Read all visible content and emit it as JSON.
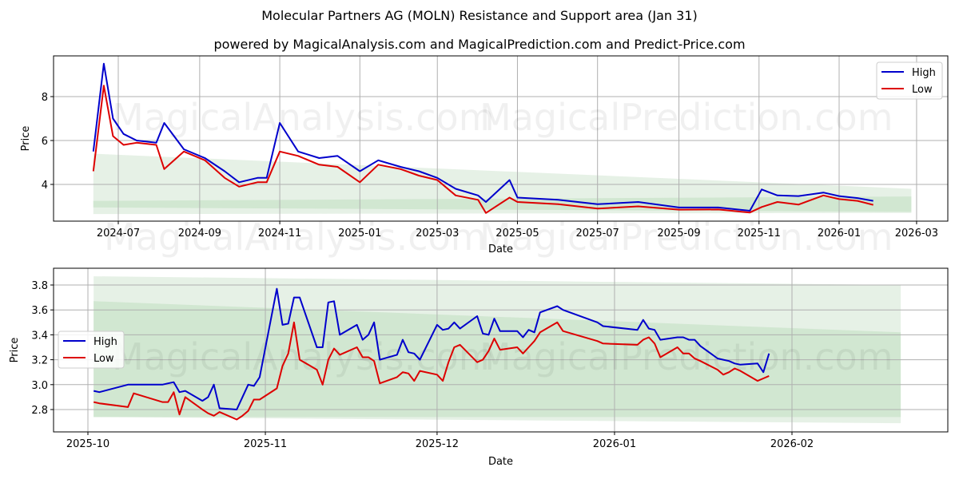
{
  "title": "Molecular Partners AG (MOLN) Resistance and Support area (Jan 31)",
  "subtitle": "powered by MagicalAnalysis.com and MagicalPrediction.com and Predict-Price.com",
  "watermarks": [
    "MagicalAnalysis.com",
    "MagicalPrediction.com"
  ],
  "colors": {
    "high": "#0000cc",
    "low": "#dd0000",
    "band_light": "#e3efe3",
    "band_dark": "#c9e3c9"
  },
  "chart_data": [
    {
      "type": "line",
      "title": "Full history",
      "xlabel": "Date",
      "ylabel": "Price",
      "x_ticks": [
        "2024-07",
        "2024-09",
        "2024-11",
        "2025-01",
        "2025-03",
        "2025-05",
        "2025-07",
        "2025-09",
        "2025-11",
        "2026-01",
        "2026-03"
      ],
      "y_ticks": [
        "4",
        "6",
        "8"
      ],
      "ylim": [
        2.3,
        9.8
      ],
      "grid": true,
      "legend": {
        "position": "upper right",
        "entries": [
          "High",
          "Low"
        ]
      },
      "x": [
        "2024-06-12",
        "2024-06-20",
        "2024-06-27",
        "2024-07-05",
        "2024-07-15",
        "2024-07-30",
        "2024-08-05",
        "2024-08-20",
        "2024-09-05",
        "2024-09-20",
        "2024-10-01",
        "2024-10-15",
        "2024-10-22",
        "2024-11-01",
        "2024-11-15",
        "2024-12-01",
        "2024-12-15",
        "2025-01-01",
        "2025-01-15",
        "2025-02-01",
        "2025-02-15",
        "2025-03-01",
        "2025-03-15",
        "2025-04-01",
        "2025-04-07",
        "2025-04-25",
        "2025-05-01",
        "2025-06-01",
        "2025-07-01",
        "2025-08-01",
        "2025-09-01",
        "2025-10-01",
        "2025-10-25",
        "2025-11-03",
        "2025-11-15",
        "2025-12-01",
        "2025-12-20",
        "2026-01-01",
        "2026-01-15",
        "2026-01-27"
      ],
      "series": [
        {
          "name": "High",
          "values": [
            5.5,
            9.5,
            7.0,
            6.3,
            6.0,
            5.9,
            6.8,
            5.6,
            5.2,
            4.6,
            4.1,
            4.3,
            4.3,
            6.8,
            5.5,
            5.2,
            5.3,
            4.6,
            5.1,
            4.8,
            4.6,
            4.3,
            3.8,
            3.5,
            3.2,
            4.2,
            3.4,
            3.3,
            3.1,
            3.2,
            2.95,
            2.95,
            2.8,
            3.77,
            3.5,
            3.47,
            3.63,
            3.47,
            3.38,
            3.25
          ]
        },
        {
          "name": "Low",
          "values": [
            4.6,
            8.5,
            6.2,
            5.8,
            5.9,
            5.8,
            4.7,
            5.5,
            5.1,
            4.3,
            3.9,
            4.1,
            4.1,
            5.5,
            5.3,
            4.9,
            4.8,
            4.1,
            4.9,
            4.7,
            4.4,
            4.2,
            3.5,
            3.3,
            2.7,
            3.4,
            3.2,
            3.1,
            2.9,
            3.0,
            2.85,
            2.86,
            2.72,
            2.97,
            3.2,
            3.08,
            3.5,
            3.33,
            3.25,
            3.07
          ]
        }
      ],
      "bands": [
        {
          "name": "outer",
          "start": {
            "date": "2024-06-12",
            "top": 5.4,
            "bottom": 2.65
          },
          "end": {
            "date": "2026-02-25",
            "top": 3.8,
            "bottom": 2.7
          }
        },
        {
          "name": "inner",
          "start": {
            "date": "2024-06-12",
            "top": 3.25,
            "bottom": 2.95
          },
          "end": {
            "date": "2026-02-25",
            "top": 3.45,
            "bottom": 2.75
          }
        }
      ]
    },
    {
      "type": "line",
      "title": "Zoomed recent period",
      "xlabel": "Date",
      "ylabel": "Price",
      "x_ticks": [
        "2025-10",
        "2025-11",
        "2025-12",
        "2026-01",
        "2026-02"
      ],
      "y_ticks": [
        "2.8",
        "3.0",
        "3.2",
        "3.4",
        "3.6",
        "3.8"
      ],
      "ylim": [
        2.66,
        3.93
      ],
      "grid": true,
      "legend": {
        "position": "center left",
        "entries": [
          "High",
          "Low"
        ]
      },
      "x": [
        "2025-10-02",
        "2025-10-03",
        "2025-10-08",
        "2025-10-09",
        "2025-10-14",
        "2025-10-15",
        "2025-10-16",
        "2025-10-17",
        "2025-10-18",
        "2025-10-21",
        "2025-10-22",
        "2025-10-23",
        "2025-10-24",
        "2025-10-27",
        "2025-10-28",
        "2025-10-29",
        "2025-10-30",
        "2025-10-31",
        "2025-11-03",
        "2025-11-04",
        "2025-11-05",
        "2025-11-06",
        "2025-11-07",
        "2025-11-10",
        "2025-11-11",
        "2025-11-12",
        "2025-11-13",
        "2025-11-14",
        "2025-11-17",
        "2025-11-18",
        "2025-11-19",
        "2025-11-20",
        "2025-11-21",
        "2025-11-24",
        "2025-11-25",
        "2025-11-26",
        "2025-11-27",
        "2025-11-28",
        "2025-12-01",
        "2025-12-02",
        "2025-12-03",
        "2025-12-04",
        "2025-12-05",
        "2025-12-08",
        "2025-12-09",
        "2025-12-10",
        "2025-12-11",
        "2025-12-12",
        "2025-12-15",
        "2025-12-16",
        "2025-12-17",
        "2025-12-18",
        "2025-12-19",
        "2025-12-22",
        "2025-12-23",
        "2025-12-29",
        "2025-12-30",
        "2026-01-05",
        "2026-01-06",
        "2026-01-07",
        "2026-01-08",
        "2026-01-09",
        "2026-01-12",
        "2026-01-13",
        "2026-01-14",
        "2026-01-15",
        "2026-01-16",
        "2026-01-19",
        "2026-01-20",
        "2026-01-21",
        "2026-01-22",
        "2026-01-23",
        "2026-01-26",
        "2026-01-27",
        "2026-01-28"
      ],
      "series": [
        {
          "name": "High",
          "values": [
            2.95,
            2.94,
            3.0,
            3.0,
            3.0,
            3.01,
            3.02,
            2.94,
            2.95,
            2.87,
            2.9,
            3.0,
            2.81,
            2.8,
            2.9,
            3.0,
            2.99,
            3.06,
            3.77,
            3.48,
            3.49,
            3.7,
            3.7,
            3.3,
            3.3,
            3.66,
            3.67,
            3.4,
            3.48,
            3.36,
            3.4,
            3.5,
            3.2,
            3.24,
            3.36,
            3.26,
            3.25,
            3.2,
            3.48,
            3.44,
            3.45,
            3.5,
            3.45,
            3.55,
            3.41,
            3.4,
            3.53,
            3.43,
            3.43,
            3.38,
            3.44,
            3.42,
            3.58,
            3.63,
            3.6,
            3.5,
            3.47,
            3.44,
            3.52,
            3.45,
            3.44,
            3.36,
            3.38,
            3.38,
            3.36,
            3.36,
            3.31,
            3.21,
            3.2,
            3.19,
            3.17,
            3.16,
            3.17,
            3.1,
            3.25
          ]
        },
        {
          "name": "Low",
          "values": [
            2.86,
            2.85,
            2.82,
            2.93,
            2.86,
            2.86,
            2.94,
            2.76,
            2.9,
            2.8,
            2.77,
            2.75,
            2.78,
            2.72,
            2.75,
            2.79,
            2.88,
            2.88,
            2.97,
            3.15,
            3.25,
            3.5,
            3.2,
            3.12,
            3.0,
            3.2,
            3.29,
            3.24,
            3.3,
            3.22,
            3.22,
            3.19,
            3.01,
            3.06,
            3.1,
            3.09,
            3.03,
            3.11,
            3.08,
            3.03,
            3.18,
            3.3,
            3.32,
            3.18,
            3.2,
            3.27,
            3.37,
            3.28,
            3.3,
            3.25,
            3.3,
            3.35,
            3.42,
            3.5,
            3.43,
            3.35,
            3.33,
            3.32,
            3.36,
            3.38,
            3.33,
            3.22,
            3.3,
            3.25,
            3.25,
            3.21,
            3.19,
            3.12,
            3.08,
            3.1,
            3.13,
            3.11,
            3.03,
            3.05,
            3.07
          ]
        }
      ],
      "bands": [
        {
          "name": "outer",
          "start": {
            "date": "2025-10-02",
            "top": 3.87,
            "bottom": 2.74
          },
          "end": {
            "date": "2026-02-20",
            "top": 3.8,
            "bottom": 2.69
          }
        },
        {
          "name": "inner",
          "start": {
            "date": "2025-10-02",
            "top": 3.67,
            "bottom": 2.74
          },
          "end": {
            "date": "2026-02-20",
            "top": 3.42,
            "bottom": 2.74
          }
        }
      ]
    }
  ],
  "legend": {
    "high_label": "High",
    "low_label": "Low"
  },
  "axes": {
    "xlabel": "Date",
    "ylabel": "Price"
  }
}
